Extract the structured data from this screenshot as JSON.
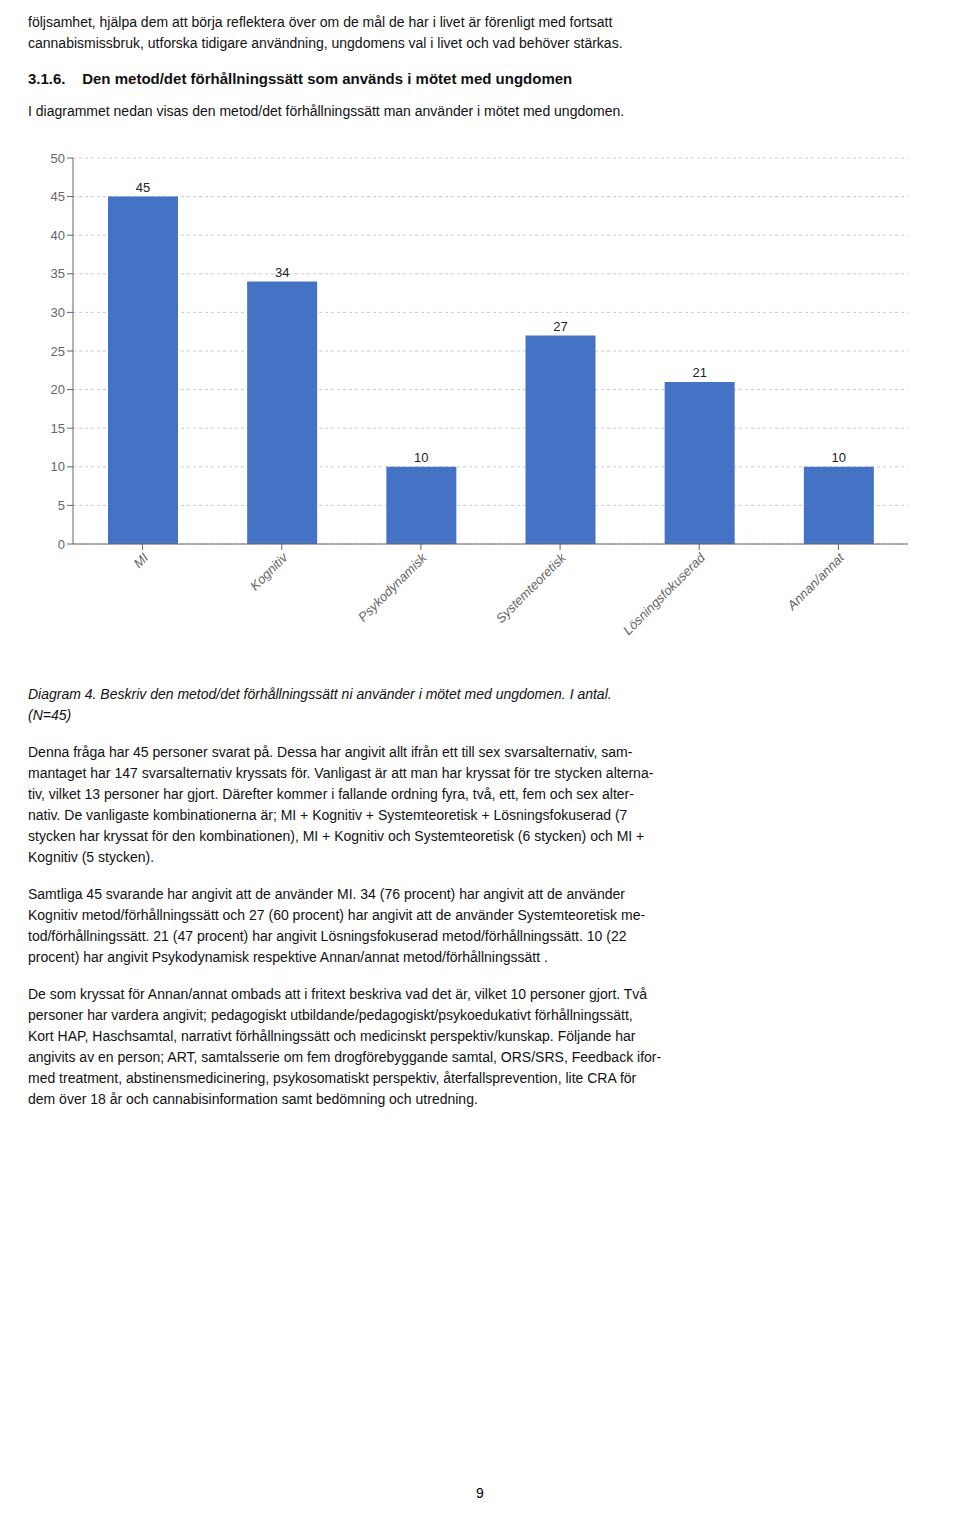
{
  "text_above": [
    "följsamhet, hjälpa dem att börja reflektera över om de mål de har i livet är förenligt med fortsatt\ncannabismissbruk, utforska tidigare användning, ungdomens val i livet och vad behöver stärkas.",
    "3.1.6.    Den metod/det förhållningssätt som används i mötet med ungdomen",
    "I diagrammet nedan visas den metod/det förhållningssätt man använder i mötet med ungdomen."
  ],
  "text_below": [
    "Denna fråga har 45 personer svarat på. Dessa har angivit allt ifrån ett till sex svarsalternativ, sam-\nmantaget har 147 svarsalternativ kryssats för. Vanligast är att man har kryssat för tre stycken alterna-\ntiv, vilket 13 personer har gjort. Därefter kommer i fallande ordning fyra, två, ett, fem och sex alter-\nnativ. De vanligaste kombinationerna är; MI + Kognitiv + Systemteoretisk + Lösningsfokuserad (7\nstycken har kryssat för den kombinationen), MI + Kognitiv och Systemteoretisk (6 stycken) och MI +\nKognitiv (5 stycken).",
    "Samtliga 45 svarande har angivit att de använder MI. 34 (76 procent) har angivit att de använder\nKognitiv metod/förhållningssätt och 27 (60 procent) har angivit att de använder Systemteoretisk me-\ntod/förhållningssätt. 21 (47 procent) har angivit Lösningsfokuserad metod/förhållningssätt. 10 (22\nprocent) har angivit Psykodynamisk respektive Annan/annat metod/förhållningssätt .",
    "De som kryssat för Annan/annat ombads att i fritext beskriva vad det är, vilket 10 personer gjort. Två\npersoner har vardera angivit; pedagogiskt utbildande/pedagogiskt/psykoedukativt förhållningssätt,\nKort HAP, Haschsamtal, narrativt förhållningssätt och medicinskt perspektiv/kunskap. Följande har\nangivits av en person; ART, samtalsserie om fem drogförebyggande samtal, ORS/SRS, Feedback ifor-\nmed treatment, abstinensmedicinering, psykosomatiskt perspektiv, återfallsprevention, lite CRA för\ndem över 18 år och cannabisinformation samt bedömning och utredning."
  ],
  "page_number": "9",
  "chart_data": {
    "type": "bar",
    "title": "Diagram 4. Beskriv den metod/det förhållningssätt ni använder i mötet med ungdomen. I antal.\n(N=45)",
    "categories": [
      "MI",
      "Kognitiv",
      "Psykodynamisk",
      "Systemteoretisk",
      "Lösningsfokuserad",
      "Annan/annat"
    ],
    "values": [
      45,
      34,
      10,
      27,
      21,
      10
    ],
    "color": "#4472C4",
    "ylim": [
      0,
      50
    ],
    "yticks": [
      0,
      5,
      10,
      15,
      20,
      25,
      30,
      35,
      40,
      45,
      50
    ],
    "grid": true,
    "data_labels": true
  }
}
